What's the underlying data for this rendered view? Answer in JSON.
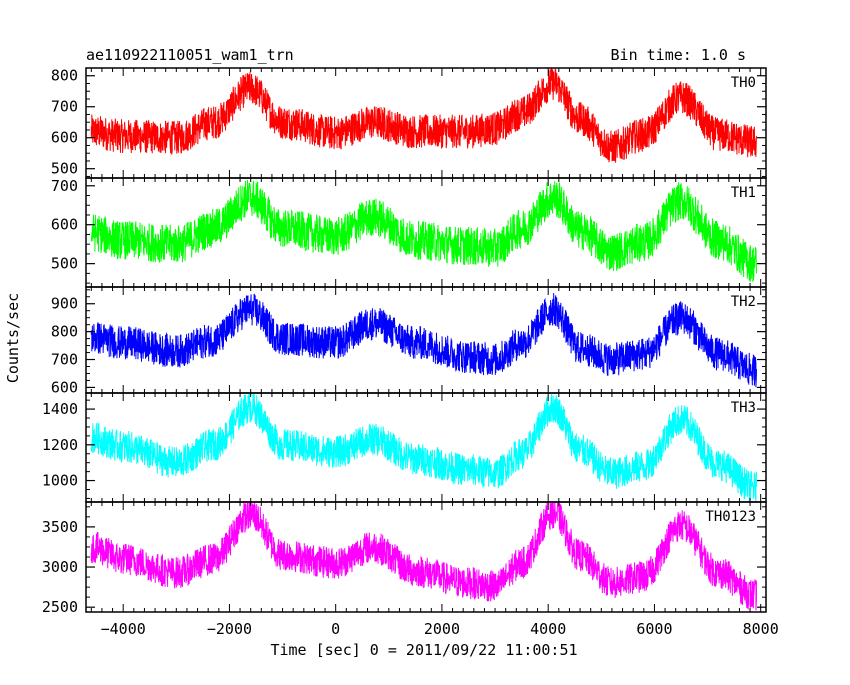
{
  "header": {
    "title": "ae110922110051_wam1_trn",
    "bin_time": "Bin time: 1.0 s"
  },
  "chart_data": {
    "type": "line",
    "title": "ae110922110051_wam1_trn",
    "bin_time": "Bin time: 1.0 s",
    "xlabel": "Time [sec] 0 = 2011/09/22 11:00:51",
    "ylabel": "Counts/sec",
    "xlim": [
      -4700,
      8100
    ],
    "x_ticks": [
      -4000,
      -2000,
      0,
      2000,
      4000,
      6000,
      8000
    ],
    "x_tick_labels": [
      "−4000",
      "−2000",
      "0",
      "2000",
      "4000",
      "6000",
      "8000"
    ],
    "shared_x": [
      -4600,
      -4000,
      -3000,
      -2300,
      -1600,
      -1000,
      0,
      700,
      1500,
      2500,
      3000,
      3500,
      4100,
      4600,
      5200,
      5800,
      6500,
      7200,
      7900
    ],
    "panels": [
      {
        "name": "TH0",
        "color": "#ff0000",
        "ylim": [
          470,
          825
        ],
        "y_ticks": [
          500,
          600,
          700,
          800
        ],
        "trend": [
          620,
          605,
          600,
          650,
          760,
          650,
          615,
          650,
          620,
          620,
          630,
          680,
          775,
          660,
          570,
          610,
          730,
          610,
          585
        ],
        "noise": 55
      },
      {
        "name": "TH1",
        "color": "#00ff00",
        "ylim": [
          440,
          720
        ],
        "y_ticks": [
          500,
          600,
          700
        ],
        "trend": [
          580,
          560,
          550,
          590,
          670,
          590,
          570,
          620,
          560,
          545,
          540,
          590,
          670,
          585,
          530,
          555,
          660,
          560,
          500
        ],
        "noise": 50
      },
      {
        "name": "TH2",
        "color": "#0000ff",
        "ylim": [
          580,
          960
        ],
        "y_ticks": [
          600,
          700,
          800,
          900
        ],
        "trend": [
          780,
          760,
          730,
          770,
          880,
          775,
          760,
          830,
          760,
          710,
          700,
          760,
          880,
          740,
          700,
          720,
          850,
          720,
          660
        ],
        "noise": 60
      },
      {
        "name": "TH3",
        "color": "#00ffff",
        "ylim": [
          880,
          1490
        ],
        "y_ticks": [
          1000,
          1200,
          1400
        ],
        "trend": [
          1240,
          1190,
          1100,
          1200,
          1410,
          1200,
          1160,
          1230,
          1120,
          1060,
          1040,
          1150,
          1410,
          1170,
          1040,
          1080,
          1340,
          1090,
          960
        ],
        "noise": 90
      },
      {
        "name": "TH0123",
        "color": "#ff00ff",
        "ylim": [
          2440,
          3810
        ],
        "y_ticks": [
          2500,
          3000,
          3500
        ],
        "trend": [
          3250,
          3100,
          2930,
          3100,
          3660,
          3150,
          3050,
          3250,
          2950,
          2800,
          2760,
          3050,
          3680,
          3140,
          2800,
          2880,
          3520,
          2930,
          2650
        ],
        "noise": 200
      }
    ]
  }
}
